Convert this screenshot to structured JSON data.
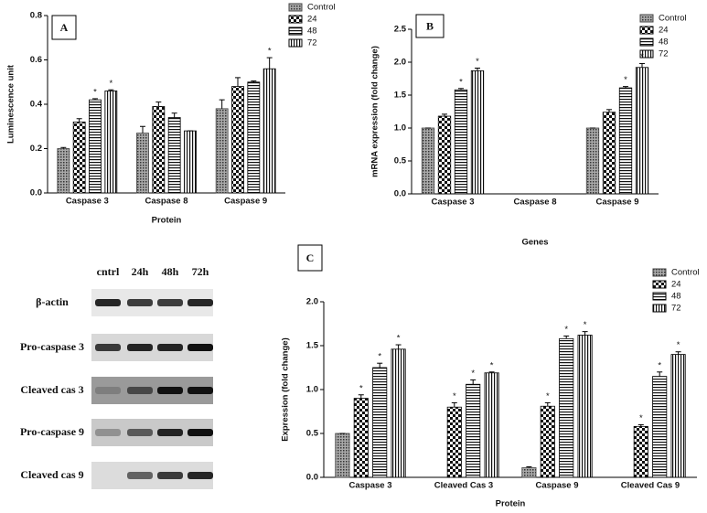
{
  "chart_data": [
    {
      "type": "bar",
      "panel": "A",
      "xlabel": "Protein",
      "ylabel": "Luminescence unit",
      "categories": [
        "Caspase 3",
        "Caspase 8",
        "Caspase 9"
      ],
      "ylim": [
        0,
        0.8
      ],
      "yticks": [
        {
          "value": 0,
          "label": "0.0"
        },
        0.2,
        0.4,
        0.6,
        0.8
      ],
      "series": [
        {
          "name": "Control",
          "color": "#444444",
          "pattern": "dots",
          "values": [
            0.2,
            0.27,
            0.38
          ],
          "errors": [
            0.005,
            0.03,
            0.04
          ],
          "annotations": [
            null,
            null,
            null
          ]
        },
        {
          "name": "24",
          "color": "#000000",
          "pattern": "checker",
          "values": [
            0.32,
            0.39,
            0.48
          ],
          "errors": [
            0.015,
            0.02,
            0.04
          ],
          "annotations": [
            null,
            null,
            null
          ]
        },
        {
          "name": "48",
          "color": "#000000",
          "pattern": "hlines",
          "values": [
            0.42,
            0.34,
            0.5
          ],
          "errors": [
            0.005,
            0.02,
            0.005
          ],
          "annotations": [
            "*",
            null,
            null
          ]
        },
        {
          "name": "72",
          "color": "#000000",
          "pattern": "vlines",
          "values": [
            0.46,
            0.28,
            0.56
          ],
          "errors": [
            0.005,
            0.0,
            0.05
          ],
          "annotations": [
            "*",
            null,
            "*"
          ]
        }
      ]
    },
    {
      "type": "bar",
      "panel": "B",
      "xlabel": "Genes",
      "ylabel": "mRNA expression (fold change)",
      "categories": [
        "Caspase 3",
        "Caspase 8",
        "Caspase 9"
      ],
      "ylim": [
        0,
        2.5
      ],
      "yticks": [
        {
          "value": 0,
          "label": "0.0"
        },
        0.5,
        {
          "value": 1,
          "label": "1.0"
        },
        1.5,
        {
          "value": 2,
          "label": "2.0"
        },
        2.5
      ],
      "series": [
        {
          "name": "Control",
          "color": "#444444",
          "pattern": "dots",
          "values": [
            1.0,
            null,
            1.0
          ],
          "errors": [
            0.0,
            null,
            0.0
          ],
          "annotations": [
            null,
            null,
            null
          ]
        },
        {
          "name": "24",
          "color": "#000000",
          "pattern": "checker",
          "values": [
            1.18,
            null,
            1.24
          ],
          "errors": [
            0.03,
            null,
            0.04
          ],
          "annotations": [
            null,
            null,
            null
          ]
        },
        {
          "name": "48",
          "color": "#000000",
          "pattern": "hlines",
          "values": [
            1.58,
            null,
            1.61
          ],
          "errors": [
            0.02,
            null,
            0.02
          ],
          "annotations": [
            "*",
            null,
            "*"
          ]
        },
        {
          "name": "72",
          "color": "#000000",
          "pattern": "vlines",
          "values": [
            1.87,
            null,
            1.92
          ],
          "errors": [
            0.04,
            null,
            0.06
          ],
          "annotations": [
            "*",
            null,
            "*"
          ]
        }
      ]
    },
    {
      "type": "bar",
      "panel": "C",
      "xlabel": "Protein",
      "ylabel": "Expression (fold change)",
      "categories": [
        "Caspase 3",
        "Cleaved Cas 3",
        "Caspase 9",
        "Cleaved Cas 9"
      ],
      "ylim": [
        0,
        2.0
      ],
      "yticks": [
        {
          "value": 0,
          "label": "0.0"
        },
        0.5,
        {
          "value": 1,
          "label": "1.0"
        },
        1.5,
        {
          "value": 2,
          "label": "2.0"
        }
      ],
      "series": [
        {
          "name": "Control",
          "color": "#444444",
          "pattern": "dots",
          "values": [
            0.5,
            null,
            0.11,
            null
          ],
          "errors": [
            0.0,
            null,
            0.01,
            null
          ],
          "annotations": [
            null,
            null,
            null,
            null
          ]
        },
        {
          "name": "24",
          "color": "#000000",
          "pattern": "checker",
          "values": [
            0.9,
            0.8,
            0.81,
            0.58
          ],
          "errors": [
            0.04,
            0.05,
            0.04,
            0.02
          ],
          "annotations": [
            "*",
            "*",
            "*",
            "*"
          ]
        },
        {
          "name": "48",
          "color": "#000000",
          "pattern": "hlines",
          "values": [
            1.25,
            1.06,
            1.58,
            1.15
          ],
          "errors": [
            0.05,
            0.05,
            0.03,
            0.05
          ],
          "annotations": [
            "*",
            "*",
            "*",
            "*"
          ]
        },
        {
          "name": "72",
          "color": "#000000",
          "pattern": "vlines",
          "values": [
            1.46,
            1.19,
            1.62,
            1.4
          ],
          "errors": [
            0.05,
            0.01,
            0.04,
            0.03
          ],
          "annotations": [
            "*",
            "*",
            "*",
            "*"
          ]
        }
      ]
    }
  ],
  "blot": {
    "columns": [
      "cntrl",
      "24h",
      "48h",
      "72h"
    ],
    "rows": [
      "β-actin",
      "Pro-caspase 3",
      "Cleaved cas 3",
      "Pro-caspase 9",
      "Cleaved cas 9"
    ]
  }
}
